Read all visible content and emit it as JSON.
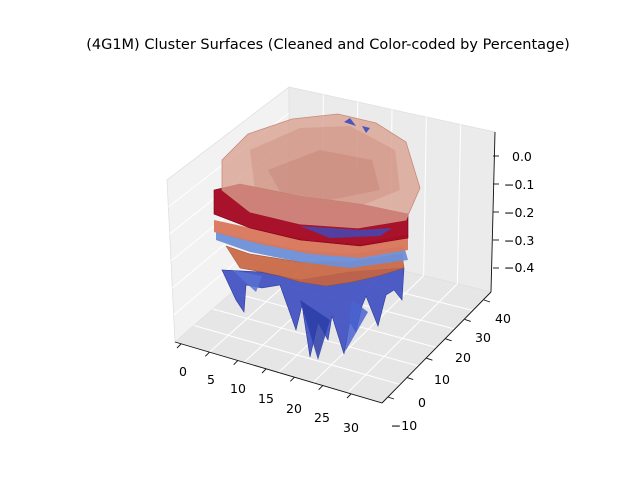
{
  "chart_data": {
    "type": "surface3d",
    "title": "(4G1M) Cluster Surfaces (Cleaned and Color-coded by Percentage)",
    "xlabel": "",
    "ylabel": "",
    "zlabel": "",
    "x_ticks": [
      "0",
      "5",
      "10",
      "15",
      "20",
      "25",
      "30"
    ],
    "y_ticks": [
      "−10",
      "0",
      "10",
      "20",
      "30",
      "40"
    ],
    "z_ticks": [
      "0.0",
      "−0.1",
      "−0.2",
      "−0.3",
      "−0.4"
    ],
    "xlim": [
      -2,
      32
    ],
    "ylim": [
      -13,
      42
    ],
    "zlim": [
      -0.47,
      0.05
    ],
    "grid": true,
    "colormap": "coolwarm",
    "surfaces": [
      {
        "layer": "bottom-spiky",
        "color": "#3b4cc0",
        "z_approx": -0.43
      },
      {
        "layer": "orange-fringe",
        "color": "#c8643f",
        "z_approx": -0.36
      },
      {
        "layer": "blue-band",
        "color": "#6d8fd8",
        "z_approx": -0.31
      },
      {
        "layer": "orange-band",
        "color": "#d9765a",
        "z_approx": -0.28
      },
      {
        "layer": "red-band",
        "color": "#a50a24",
        "z_approx": -0.23
      },
      {
        "layer": "top-translucent",
        "color": "#d9a090",
        "z_approx": -0.08
      }
    ]
  }
}
